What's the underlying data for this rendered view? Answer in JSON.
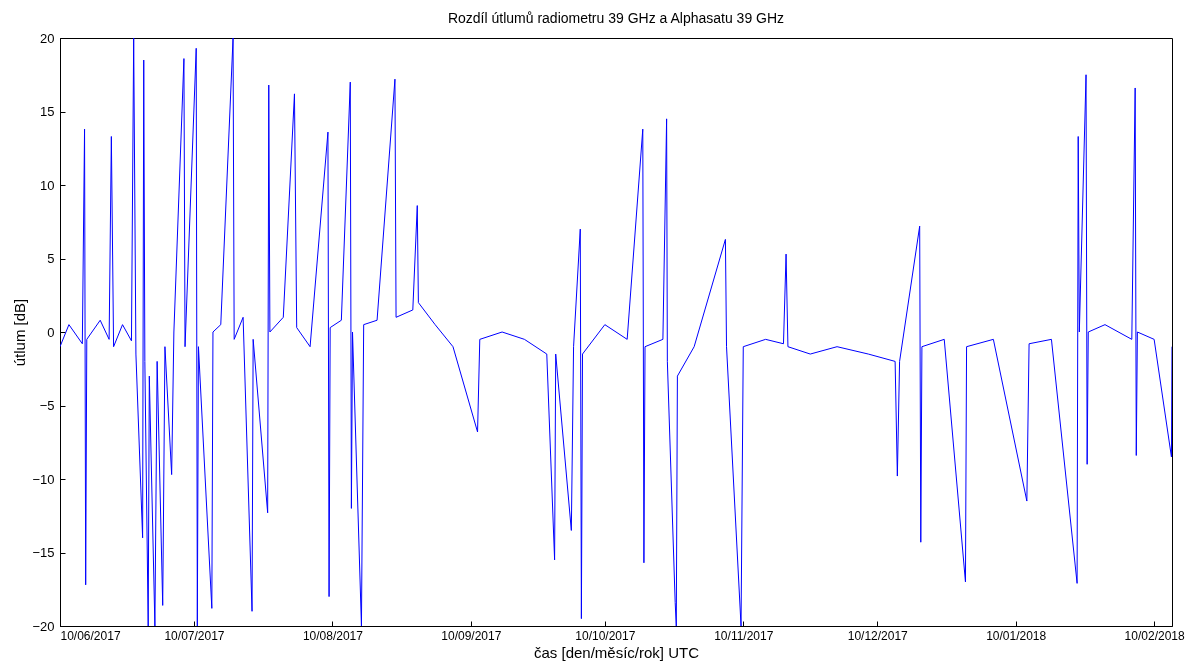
{
  "chart_data": {
    "type": "line",
    "title": "Rozdíl útlumů radiometru 39 GHz a Alphasatu 39 GHz",
    "xlabel": "čas [den/měsíc/rok] UTC",
    "ylabel": "útlum [dB]",
    "xlim": [
      "2017-06-10",
      "2018-02-14"
    ],
    "xticks": [
      {
        "value": "2017-06-10",
        "label": "10/06/2017"
      },
      {
        "value": "2017-07-10",
        "label": "10/07/2017"
      },
      {
        "value": "2017-08-10",
        "label": "10/08/2017"
      },
      {
        "value": "2017-09-10",
        "label": "10/09/2017"
      },
      {
        "value": "2017-10-10",
        "label": "10/10/2017"
      },
      {
        "value": "2017-11-10",
        "label": "10/11/2017"
      },
      {
        "value": "2017-12-10",
        "label": "10/12/2017"
      },
      {
        "value": "2018-01-10",
        "label": "10/01/2018"
      },
      {
        "value": "2018-02-10",
        "label": "10/02/2018"
      }
    ],
    "ylim": [
      -20,
      20
    ],
    "yticks": [
      -20,
      -15,
      -10,
      -5,
      0,
      5,
      10,
      15,
      20
    ],
    "x": [
      "2017-06-10",
      "2017-06-12",
      "2017-06-15",
      "2017-06-15T12:00",
      "2017-06-15T18:00",
      "2017-06-16",
      "2017-06-19",
      "2017-06-21",
      "2017-06-21T12:00",
      "2017-06-22",
      "2017-06-24",
      "2017-06-26",
      "2017-06-26T12:00",
      "2017-06-27",
      "2017-06-28T12:00",
      "2017-06-28T18:00",
      "2017-06-29",
      "2017-06-29T18:00",
      "2017-06-30",
      "2017-07-01T06:00",
      "2017-07-01T18:00",
      "2017-07-03",
      "2017-07-03T12:00",
      "2017-07-05",
      "2017-07-05T12:00",
      "2017-07-07T18:00",
      "2017-07-08",
      "2017-07-10T12:00",
      "2017-07-10T18:00",
      "2017-07-11",
      "2017-07-14",
      "2017-07-14T06:00",
      "2017-07-16",
      "2017-07-18T18:00",
      "2017-07-19",
      "2017-07-21",
      "2017-07-23",
      "2017-07-23T06:00",
      "2017-07-26T12:00",
      "2017-07-26T18:00",
      "2017-07-27",
      "2017-07-30",
      "2017-08-01T12:00",
      "2017-08-02",
      "2017-08-05",
      "2017-08-09",
      "2017-08-09T06:00",
      "2017-08-09T12:00",
      "2017-08-12",
      "2017-08-14",
      "2017-08-14T06:00",
      "2017-08-14T12:00",
      "2017-08-16T12:00",
      "2017-08-17",
      "2017-08-20",
      "2017-08-24",
      "2017-08-24T06:00",
      "2017-08-28",
      "2017-08-29",
      "2017-08-29T06:00",
      "2017-09-02",
      "2017-09-06",
      "2017-09-11T12:00",
      "2017-09-12",
      "2017-09-17",
      "2017-09-22",
      "2017-09-27",
      "2017-09-28T18:00",
      "2017-09-29",
      "2017-10-02T12:00",
      "2017-10-03",
      "2017-10-04T12:00",
      "2017-10-04T18:00",
      "2017-10-05",
      "2017-10-10",
      "2017-10-15",
      "2017-10-18T12:00",
      "2017-10-18T18:00",
      "2017-10-19",
      "2017-10-23",
      "2017-10-23T20:00",
      "2017-10-24",
      "2017-10-25T18:00",
      "2017-10-26",
      "2017-10-26T06:00",
      "2017-10-30",
      "2017-11-06",
      "2017-11-06T06:00",
      "2017-11-09T12:00",
      "2017-11-10",
      "2017-11-15",
      "2017-11-19",
      "2017-11-19T14:00",
      "2017-11-20",
      "2017-11-25",
      "2017-12-01",
      "2017-12-08",
      "2017-12-14",
      "2017-12-14T12:00",
      "2017-12-15",
      "2017-12-19T12:00",
      "2017-12-19T18:00",
      "2017-12-20",
      "2017-12-25",
      "2017-12-29T18:00",
      "2017-12-30",
      "2018-01-05",
      "2018-01-12T12:00",
      "2018-01-13",
      "2018-01-18",
      "2018-01-23T18:00",
      "2018-01-24",
      "2018-01-24T06:00",
      "2018-01-25T18:00",
      "2018-01-26",
      "2018-01-26T06:00",
      "2018-01-30",
      "2018-02-05",
      "2018-02-05T18:00",
      "2018-02-06",
      "2018-02-06T06:00",
      "2018-02-10",
      "2018-02-13T21:00",
      "2018-02-14"
    ],
    "series": [
      {
        "color": "#0000ff",
        "values": [
          -1,
          0.5,
          -0.8,
          13.8,
          -17.2,
          -0.5,
          0.8,
          -0.5,
          13.3,
          -1,
          0.5,
          -0.6,
          20,
          -1.5,
          -14,
          18.5,
          -2,
          -20,
          -3,
          -20,
          -2,
          -18.6,
          -1,
          -9.7,
          0,
          18.6,
          -1,
          19.3,
          -20,
          -1,
          -18.8,
          0,
          0.5,
          20,
          -0.5,
          1,
          -19,
          -0.5,
          -12.3,
          16.8,
          0,
          1,
          16.2,
          0.3,
          -1,
          13.6,
          -18,
          0.3,
          0.8,
          17,
          -12,
          0,
          -20,
          0.5,
          0.8,
          17.2,
          1,
          1.5,
          8.6,
          2,
          0.5,
          -1,
          -6.8,
          -0.5,
          0,
          -0.5,
          -1.5,
          -15.5,
          -1.5,
          -13.5,
          -1,
          7,
          -19.5,
          -1.5,
          0.5,
          -0.5,
          13.8,
          -15.7,
          -1,
          -0.5,
          14.5,
          -2,
          -18.4,
          -20,
          -3,
          -1,
          6.3,
          -1,
          -20,
          -1,
          -0.5,
          -0.8,
          5.3,
          -1,
          -1.5,
          -1,
          -1.5,
          -2,
          -9.8,
          -2,
          7.2,
          -14.3,
          -1,
          -0.5,
          -17,
          -1,
          -0.5,
          -11.5,
          -0.8,
          -0.5,
          -17.1,
          13.3,
          0,
          17.5,
          -9,
          0,
          0.5,
          -0.5,
          16.6,
          -8.4,
          0,
          -0.5,
          -8.5,
          -1
        ]
      }
    ]
  }
}
